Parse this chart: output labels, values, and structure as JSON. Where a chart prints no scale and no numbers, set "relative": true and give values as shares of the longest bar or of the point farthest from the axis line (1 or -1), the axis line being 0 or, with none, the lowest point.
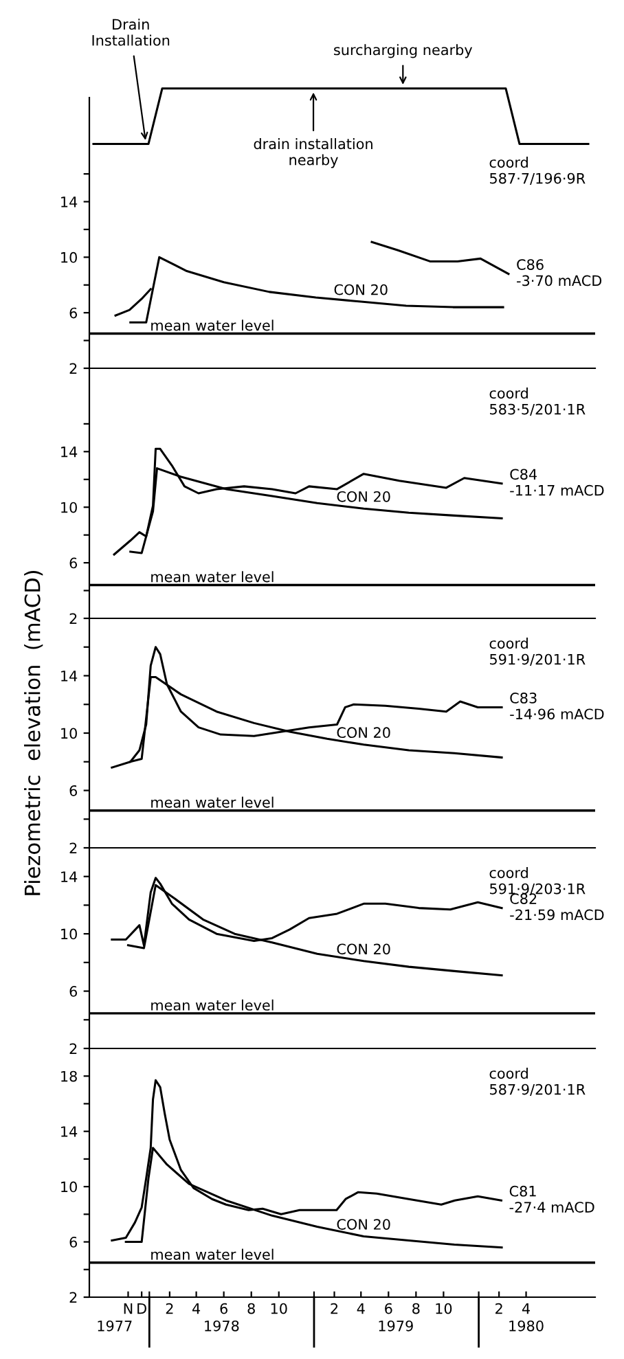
{
  "chart_data": [
    {
      "type": "line",
      "relative": true,
      "tick_labels": false,
      "categories": [
        null,
        null,
        null,
        null,
        null,
        null,
        null,
        null,
        null,
        null,
        null,
        null,
        null,
        null,
        null,
        null,
        null,
        null,
        null,
        null,
        null,
        null,
        null,
        null,
        null,
        null,
        null,
        null,
        null,
        null,
        null,
        null,
        null,
        null,
        null,
        null,
        null
      ],
      "series": [
        {
          "color": "#000000",
          "values": [
            0,
            0,
            0,
            0,
            0,
            1,
            1,
            1,
            1,
            1,
            1,
            1,
            1,
            1,
            1,
            1,
            1,
            1,
            1,
            1,
            1,
            1,
            1,
            1,
            1,
            1,
            1,
            1,
            1,
            1,
            1,
            0,
            0,
            0,
            0,
            0,
            0
          ]
        }
      ],
      "annotations": [
        "Drain\nInstallation",
        "drain installation\nnearby",
        "surcharging nearby"
      ]
    },
    {
      "type": "line",
      "tick_labels": "y",
      "xlim": [
        "1977-08-21",
        "1980-09-15"
      ],
      "ylim": [
        2,
        21.5
      ],
      "yticks": [
        2,
        {
          "value": 4,
          "label": null
        },
        6,
        {
          "value": 8,
          "label": null
        },
        10,
        {
          "value": 12,
          "label": null
        },
        14,
        {
          "value": 16,
          "label": null
        }
      ],
      "ref_lines": [
        {
          "axis": "y",
          "value": 4.5,
          "label": "mean water level"
        }
      ],
      "annotations": [
        "coord\n587·7/196·9R"
      ],
      "series": [
        {
          "name": "C86\n-3·70 mACD",
          "color": "#000000",
          "x": [
            "1977-10-18",
            "1977-11-18",
            "1977-12-15",
            "1978-01-04",
            "1978-08-15",
            "1979-05-09",
            "1979-07-06",
            "1979-09-15",
            "1979-11-15",
            "1980-01-05",
            "1980-03-07"
          ],
          "values": [
            5.8,
            6.2,
            7.0,
            7.7,
            null,
            11.1,
            10.5,
            9.7,
            9.7,
            9.9,
            8.8
          ]
        },
        {
          "name": "CON 20",
          "color": "#000000",
          "x": [
            "1977-11-20",
            "1977-12-25",
            "1978-01-23",
            "1978-03-25",
            "1978-06-15",
            "1978-09-24",
            "1979-01-05",
            "1979-04-15",
            "1979-07-24",
            "1979-11-05",
            "1980-02-24"
          ],
          "values": [
            5.3,
            5.3,
            10.0,
            9.0,
            8.2,
            7.5,
            7.1,
            6.8,
            6.5,
            6.4,
            6.4
          ]
        }
      ]
    },
    {
      "type": "line",
      "tick_labels": "y",
      "xlim": [
        "1977-08-21",
        "1980-09-15"
      ],
      "ylim": [
        2,
        20
      ],
      "yticks": [
        2,
        {
          "value": 4,
          "label": null
        },
        6,
        {
          "value": 8,
          "label": null
        },
        10,
        {
          "value": 12,
          "label": null
        },
        14,
        {
          "value": 16,
          "label": null
        }
      ],
      "ref_lines": [
        {
          "axis": "y",
          "value": 4.4,
          "label": "mean water level"
        }
      ],
      "annotations": [
        "coord\n583·5/201·1R"
      ],
      "series": [
        {
          "name": "C84\n-11·17 mACD",
          "color": "#000000",
          "x": [
            "1977-10-15",
            "1977-11-20",
            "1977-12-10",
            "1977-12-25",
            "1978-01-09",
            "1978-01-15",
            "1978-01-25",
            "1978-02-20",
            "1978-03-20",
            "1978-04-20",
            "1978-05-30",
            "1978-07-30",
            "1978-09-30",
            "1978-11-21",
            "1978-12-21",
            "1979-02-21",
            "1979-04-21",
            "1979-07-09",
            "1979-10-21",
            "1979-11-30",
            "1980-02-21"
          ],
          "values": [
            6.6,
            7.6,
            8.2,
            7.9,
            10.1,
            14.2,
            14.2,
            13.0,
            11.5,
            11.0,
            11.3,
            11.5,
            11.3,
            11.0,
            11.5,
            11.3,
            12.4,
            11.9,
            11.4,
            12.1,
            11.7
          ]
        },
        {
          "name": "CON 20",
          "color": "#000000",
          "x": [
            "1977-11-20",
            "1977-12-15",
            "1978-01-09",
            "1978-01-18",
            "1978-03-11",
            "1978-06-21",
            "1978-09-30",
            "1979-01-08",
            "1979-04-21",
            "1979-07-30",
            "1979-11-08",
            "1980-02-21"
          ],
          "values": [
            6.8,
            6.7,
            9.7,
            12.8,
            12.2,
            11.3,
            10.8,
            10.3,
            9.9,
            9.6,
            9.4,
            9.2
          ]
        }
      ]
    },
    {
      "type": "line",
      "tick_labels": "y",
      "xlim": [
        "1977-08-21",
        "1980-09-15"
      ],
      "ylim": [
        2,
        18
      ],
      "ylabel": "Piezometric  elevation  (mACD)",
      "yticks": [
        2,
        {
          "value": 4,
          "label": null
        },
        6,
        {
          "value": 8,
          "label": null
        },
        10,
        {
          "value": 12,
          "label": null
        },
        14,
        {
          "value": 16,
          "label": null
        }
      ],
      "ref_lines": [
        {
          "axis": "y",
          "value": 4.6,
          "label": "mean water level"
        }
      ],
      "annotations": [
        "coord\n591·9/201·1R"
      ],
      "series": [
        {
          "name": "C83\n-14·96 mACD",
          "color": "#000000",
          "x": [
            "1977-10-10",
            "1977-11-20",
            "1977-12-10",
            "1977-12-25",
            "1978-01-04",
            "1978-01-15",
            "1978-01-25",
            "1978-02-09",
            "1978-03-12",
            "1978-04-20",
            "1978-06-08",
            "1978-08-21",
            "1978-10-21",
            "1978-12-21",
            "1979-02-21",
            "1979-03-11",
            "1979-03-30",
            "1979-06-08",
            "1979-08-21",
            "1979-10-21",
            "1979-11-21",
            "1979-12-30",
            "1980-02-21"
          ],
          "values": [
            7.6,
            8.0,
            8.8,
            10.6,
            14.7,
            16.0,
            15.5,
            13.4,
            11.5,
            10.4,
            9.9,
            9.8,
            10.1,
            10.4,
            10.6,
            11.8,
            12.0,
            11.9,
            11.7,
            11.5,
            12.2,
            11.8,
            11.8
          ]
        },
        {
          "name": "CON 20",
          "color": "#000000",
          "x": [
            "1977-11-20",
            "1977-12-15",
            "1978-01-04",
            "1978-01-15",
            "1978-03-12",
            "1978-05-30",
            "1978-08-21",
            "1978-11-08",
            "1979-01-30",
            "1979-04-21",
            "1979-07-30",
            "1979-11-08",
            "1980-02-21"
          ],
          "values": [
            8.0,
            8.2,
            13.9,
            13.9,
            12.7,
            11.5,
            10.7,
            10.1,
            9.6,
            9.2,
            8.8,
            8.6,
            8.3
          ]
        }
      ]
    },
    {
      "type": "line",
      "tick_labels": "y",
      "xlim": [
        "1977-08-21",
        "1980-09-15"
      ],
      "ylim": [
        2,
        16
      ],
      "yticks": [
        2,
        {
          "value": 4,
          "label": null
        },
        6,
        {
          "value": 8,
          "label": null
        },
        10,
        {
          "value": 12,
          "label": null
        },
        14
      ],
      "ref_lines": [
        {
          "axis": "y",
          "value": 4.45,
          "label": "mean water level"
        }
      ],
      "annotations": [
        "coord\n591·9/203·1R"
      ],
      "series": [
        {
          "name": "C82\n-21·59 mACD",
          "color": "#000000",
          "x": [
            "1977-10-10",
            "1977-11-10",
            "1977-12-10",
            "1977-12-20",
            "1978-01-04",
            "1978-01-15",
            "1978-01-25",
            "1978-02-20",
            "1978-03-30",
            "1978-05-30",
            "1978-08-21",
            "1978-09-30",
            "1978-11-08",
            "1978-12-21",
            "1979-02-21",
            "1979-04-21",
            "1979-06-08",
            "1979-08-21",
            "1979-10-30",
            "1979-12-30",
            "1980-02-21"
          ],
          "values": [
            9.6,
            9.6,
            10.6,
            9.2,
            12.9,
            13.9,
            13.5,
            12.1,
            11.0,
            10.0,
            9.5,
            9.7,
            10.3,
            11.1,
            11.4,
            12.1,
            12.1,
            11.8,
            11.7,
            12.2,
            11.8
          ]
        },
        {
          "name": "CON 20",
          "color": "#000000",
          "x": [
            "1977-11-15",
            "1977-12-20",
            "1978-01-15",
            "1978-02-20",
            "1978-04-30",
            "1978-07-09",
            "1978-09-30",
            "1979-01-08",
            "1979-04-21",
            "1979-07-30",
            "1979-11-08",
            "1980-02-21"
          ],
          "values": [
            9.2,
            9.0,
            13.4,
            12.6,
            11.0,
            10.0,
            9.4,
            8.6,
            8.1,
            7.7,
            7.4,
            7.1
          ]
        }
      ]
    },
    {
      "type": "line",
      "xlim": [
        "1977-08-21",
        "1980-09-15"
      ],
      "ylim": [
        2,
        20
      ],
      "yticks": [
        2,
        {
          "value": 4,
          "label": null
        },
        6,
        {
          "value": 8,
          "label": null
        },
        10,
        {
          "value": 12,
          "label": null
        },
        14,
        {
          "value": 16,
          "label": null
        },
        18
      ],
      "xticks": [
        {
          "value": "1977-11-15",
          "label": "N"
        },
        {
          "value": "1977-12-15",
          "label": "D"
        },
        {
          "value": "1978-01-01",
          "label": null
        },
        {
          "value": "1978-02-15",
          "label": "2"
        },
        {
          "value": "1978-04-15",
          "label": "4"
        },
        {
          "value": "1978-06-15",
          "label": "6"
        },
        {
          "value": "1978-08-15",
          "label": "8"
        },
        {
          "value": "1978-10-15",
          "label": "10"
        },
        {
          "value": "1979-01-01",
          "label": null
        },
        {
          "value": "1979-02-15",
          "label": "2"
        },
        {
          "value": "1979-04-15",
          "label": "4"
        },
        {
          "value": "1979-06-15",
          "label": "6"
        },
        {
          "value": "1979-08-15",
          "label": "8"
        },
        {
          "value": "1979-10-15",
          "label": "10"
        },
        {
          "value": "1980-01-01",
          "label": null
        },
        {
          "value": "1980-02-15",
          "label": "2"
        },
        {
          "value": "1980-04-15",
          "label": "4"
        }
      ],
      "x2lim": [
        "1977-08-21",
        "1980-09-15"
      ],
      "x2ticks": [
        {
          "value": "1977-10-16",
          "label": "1977"
        },
        {
          "value": "1978-06-10",
          "label": "1978"
        },
        {
          "value": "1979-07-01",
          "label": "1979"
        },
        {
          "value": "1980-04-15",
          "label": "1980"
        }
      ],
      "ref_lines": [
        {
          "axis": "y",
          "value": 4.5,
          "label": "mean water level"
        }
      ],
      "annotations": [
        "coord\n587·9/201·1R"
      ],
      "series": [
        {
          "name": "C81\n-27·4 mACD",
          "color": "#000000",
          "x": [
            "1977-10-10",
            "1977-11-10",
            "1977-11-30",
            "1977-12-15",
            "1977-12-25",
            "1978-01-04",
            "1978-01-09",
            "1978-01-15",
            "1978-01-25",
            "1978-02-04",
            "1978-02-15",
            "1978-03-12",
            "1978-04-09",
            "1978-05-20",
            "1978-06-20",
            "1978-08-09",
            "1978-09-09",
            "1978-10-20",
            "1978-11-30",
            "1979-02-20",
            "1979-03-12",
            "1979-04-09",
            "1979-05-20",
            "1979-07-30",
            "1979-10-10",
            "1979-11-09",
            "1979-12-30",
            "1980-02-20"
          ],
          "values": [
            6.1,
            6.3,
            7.4,
            8.5,
            10.6,
            12.8,
            16.3,
            17.7,
            17.2,
            15.3,
            13.4,
            11.2,
            9.9,
            9.1,
            8.7,
            8.3,
            8.4,
            8.0,
            8.3,
            8.3,
            9.1,
            9.6,
            9.5,
            9.1,
            8.7,
            9.0,
            9.3,
            9.0
          ]
        },
        {
          "name": "CON 20",
          "color": "#000000",
          "x": [
            "1977-11-10",
            "1977-12-15",
            "1977-12-30",
            "1978-01-09",
            "1978-02-09",
            "1978-03-30",
            "1978-06-20",
            "1978-09-30",
            "1979-01-08",
            "1979-04-21",
            "1979-07-30",
            "1979-11-08",
            "1980-02-21"
          ],
          "values": [
            6.0,
            6.0,
            10.6,
            12.8,
            11.6,
            10.2,
            9.0,
            7.9,
            7.1,
            6.4,
            6.1,
            5.8,
            5.6
          ]
        }
      ]
    }
  ]
}
